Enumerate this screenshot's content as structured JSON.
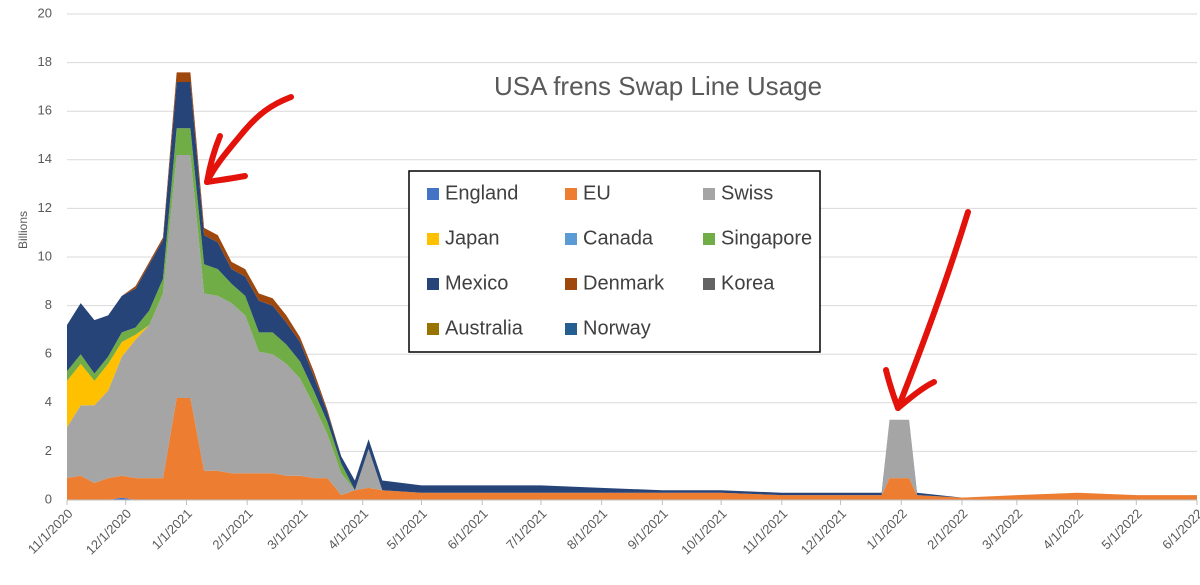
{
  "chart_data": {
    "type": "stacked-area",
    "title": "USA frens Swap Line Usage",
    "y_label": "Billions",
    "x": [
      "11/1/2020",
      "11/8/2020",
      "11/15/2020",
      "11/22/2020",
      "11/29/2020",
      "12/6/2020",
      "12/13/2020",
      "12/20/2020",
      "12/27/2020",
      "1/3/2021",
      "1/10/2021",
      "1/17/2021",
      "1/24/2021",
      "1/31/2021",
      "2/7/2021",
      "2/14/2021",
      "2/21/2021",
      "2/28/2021",
      "3/7/2021",
      "3/14/2021",
      "3/21/2021",
      "3/28/2021",
      "4/4/2021",
      "4/11/2021",
      "5/1/2021",
      "6/1/2021",
      "7/1/2021",
      "8/1/2021",
      "9/1/2021",
      "10/1/2021",
      "11/1/2021",
      "12/1/2021",
      "12/22/2021",
      "12/26/2021",
      "1/5/2022",
      "1/9/2022",
      "2/1/2022",
      "3/1/2022",
      "4/1/2022",
      "5/1/2022",
      "6/1/2022"
    ],
    "xlim": [
      "11/1/2020",
      "6/1/2022"
    ],
    "xticks": [
      "11/1/2020",
      "12/1/2020",
      "1/1/2021",
      "2/1/2021",
      "3/1/2021",
      "4/1/2021",
      "5/1/2021",
      "6/1/2021",
      "7/1/2021",
      "8/1/2021",
      "9/1/2021",
      "10/1/2021",
      "11/1/2021",
      "12/1/2021",
      "1/1/2022",
      "2/1/2022",
      "3/1/2022",
      "4/1/2022",
      "5/1/2022",
      "6/1/2022"
    ],
    "ylim": [
      0,
      20
    ],
    "yticks": [
      0,
      2,
      4,
      6,
      8,
      10,
      12,
      14,
      16,
      18,
      20
    ],
    "grid": true,
    "series": [
      {
        "name": "England",
        "color": "#4472c4",
        "values": [
          0,
          0,
          0,
          0,
          0.1,
          0,
          0,
          0,
          0,
          0,
          0,
          0,
          0,
          0,
          0,
          0,
          0,
          0,
          0,
          0,
          0,
          0,
          0,
          0,
          0,
          0,
          0,
          0,
          0,
          0,
          0,
          0,
          0,
          0,
          0,
          0,
          0,
          0,
          0,
          0,
          0
        ]
      },
      {
        "name": "EU",
        "color": "#ed7d31",
        "values": [
          0.9,
          1.0,
          0.7,
          0.9,
          0.9,
          0.9,
          0.9,
          0.9,
          4.2,
          4.2,
          1.2,
          1.2,
          1.1,
          1.1,
          1.1,
          1.1,
          1.0,
          1.0,
          0.9,
          0.9,
          0.2,
          0.4,
          0.5,
          0.4,
          0.3,
          0.3,
          0.3,
          0.3,
          0.3,
          0.3,
          0.2,
          0.2,
          0.2,
          0.9,
          0.9,
          0.2,
          0.1,
          0.2,
          0.3,
          0.2,
          0.2
        ]
      },
      {
        "name": "Swiss",
        "color": "#a5a5a5",
        "values": [
          2.1,
          2.9,
          3.2,
          3.6,
          4.9,
          5.7,
          6.3,
          7.6,
          10.0,
          10.0,
          7.3,
          7.2,
          7.0,
          6.5,
          5.0,
          4.9,
          4.6,
          4.0,
          3.0,
          1.8,
          0.9,
          0,
          1.6,
          0,
          0,
          0,
          0,
          0,
          0,
          0,
          0,
          0,
          0,
          2.4,
          2.4,
          0,
          0,
          0,
          0,
          0,
          0
        ]
      },
      {
        "name": "Japan",
        "color": "#ffc000",
        "values": [
          1.9,
          1.7,
          1.0,
          1.1,
          0.6,
          0.2,
          0,
          0,
          0,
          0,
          0,
          0,
          0,
          0,
          0,
          0,
          0,
          0,
          0,
          0,
          0,
          0,
          0,
          0,
          0,
          0,
          0,
          0,
          0,
          0,
          0,
          0,
          0,
          0,
          0,
          0,
          0,
          0,
          0,
          0,
          0
        ]
      },
      {
        "name": "Canada",
        "color": "#5b9bd5",
        "values": [
          0,
          0,
          0,
          0,
          0,
          0,
          0,
          0,
          0,
          0,
          0,
          0,
          0,
          0,
          0,
          0,
          0,
          0,
          0,
          0,
          0,
          0,
          0,
          0,
          0,
          0,
          0,
          0,
          0,
          0,
          0,
          0,
          0,
          0,
          0,
          0,
          0,
          0,
          0,
          0,
          0
        ]
      },
      {
        "name": "Singapore",
        "color": "#70ad47",
        "values": [
          0.4,
          0.4,
          0.3,
          0.3,
          0.4,
          0.3,
          0.6,
          0.6,
          1.1,
          1.1,
          1.2,
          1.1,
          0.8,
          0.8,
          0.8,
          0.9,
          0.8,
          0.7,
          0.6,
          0.5,
          0.4,
          0,
          0,
          0,
          0,
          0,
          0,
          0,
          0,
          0,
          0,
          0,
          0,
          0,
          0,
          0,
          0,
          0,
          0,
          0,
          0
        ]
      },
      {
        "name": "Mexico",
        "color": "#264478",
        "values": [
          1.9,
          2.1,
          2.2,
          1.7,
          1.5,
          1.6,
          1.9,
          1.6,
          1.9,
          1.9,
          1.2,
          1.1,
          0.6,
          0.8,
          1.3,
          1.1,
          0.9,
          0.8,
          0.6,
          0.4,
          0.3,
          0.4,
          0.4,
          0.4,
          0.3,
          0.3,
          0.3,
          0.2,
          0.1,
          0.1,
          0.1,
          0.1,
          0.1,
          0,
          0,
          0.1,
          0,
          0,
          0,
          0,
          0
        ]
      },
      {
        "name": "Denmark",
        "color": "#9e480e",
        "values": [
          0,
          0,
          0,
          0,
          0,
          0.1,
          0.1,
          0.1,
          0.4,
          0.4,
          0.3,
          0.3,
          0.3,
          0.3,
          0.3,
          0.3,
          0.3,
          0.2,
          0.2,
          0.1,
          0,
          0,
          0,
          0,
          0,
          0,
          0,
          0,
          0,
          0,
          0,
          0,
          0,
          0,
          0,
          0,
          0,
          0,
          0,
          0,
          0
        ]
      },
      {
        "name": "Korea",
        "color": "#636363",
        "values": [
          0,
          0,
          0,
          0,
          0,
          0,
          0,
          0,
          0,
          0,
          0,
          0,
          0,
          0,
          0,
          0,
          0,
          0,
          0,
          0,
          0,
          0,
          0,
          0,
          0,
          0,
          0,
          0,
          0,
          0,
          0,
          0,
          0,
          0,
          0,
          0,
          0,
          0,
          0,
          0,
          0
        ]
      },
      {
        "name": "Australia",
        "color": "#997300",
        "values": [
          0,
          0,
          0,
          0,
          0,
          0,
          0,
          0,
          0,
          0,
          0,
          0,
          0,
          0,
          0,
          0,
          0,
          0,
          0,
          0,
          0,
          0,
          0,
          0,
          0,
          0,
          0,
          0,
          0,
          0,
          0,
          0,
          0,
          0,
          0,
          0,
          0,
          0,
          0,
          0,
          0
        ]
      },
      {
        "name": "Norway",
        "color": "#255e91",
        "values": [
          0,
          0,
          0,
          0,
          0,
          0,
          0,
          0,
          0,
          0,
          0,
          0,
          0,
          0,
          0,
          0,
          0,
          0,
          0,
          0,
          0,
          0,
          0,
          0,
          0,
          0,
          0,
          0,
          0,
          0,
          0,
          0,
          0,
          0,
          0,
          0,
          0,
          0,
          0,
          0,
          0
        ]
      }
    ]
  }
}
